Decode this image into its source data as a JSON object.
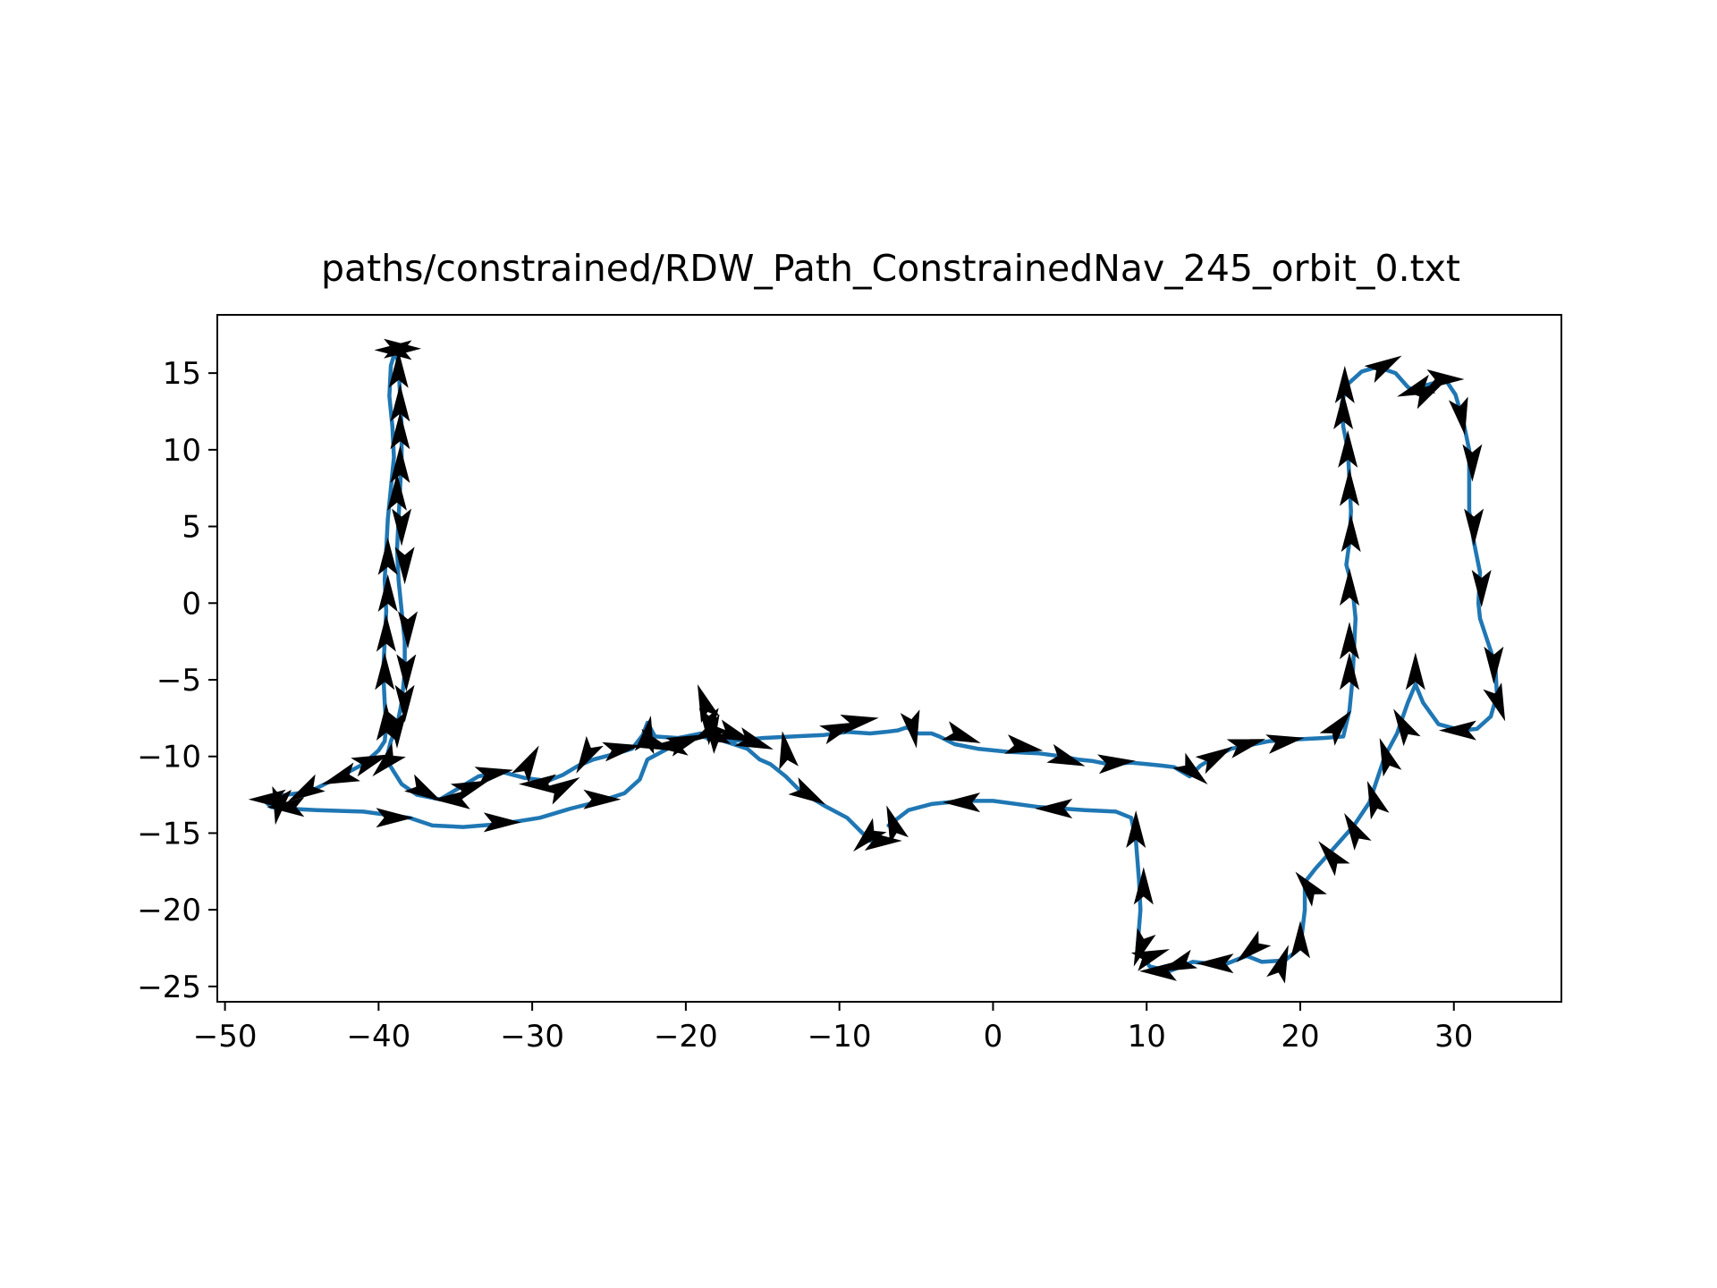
{
  "chart_data": {
    "type": "line",
    "title": "paths/constrained/RDW_Path_ConstrainedNav_245_orbit_0.txt",
    "xlabel": "",
    "ylabel": "",
    "xlim": [
      -50.5,
      37
    ],
    "ylim": [
      -26,
      18.8
    ],
    "x_ticks": [
      -50,
      -40,
      -30,
      -20,
      -10,
      0,
      10,
      20,
      30
    ],
    "x_tick_labels": [
      "−50",
      "−40",
      "−30",
      "−20",
      "−10",
      "0",
      "10",
      "20",
      "30"
    ],
    "y_ticks": [
      15,
      10,
      5,
      0,
      -5,
      -10,
      -15,
      -20,
      -25
    ],
    "y_tick_labels": [
      "15",
      "10",
      "5",
      "0",
      "−5",
      "−10",
      "−15",
      "−20",
      "−25"
    ],
    "grid": false,
    "line_color": "#1f77b4",
    "arrow_color": "#000000",
    "path": [
      [
        -6.8,
        -14.5
      ],
      [
        -5.5,
        -13.5
      ],
      [
        -4,
        -13.1
      ],
      [
        -2,
        -12.9
      ],
      [
        0,
        -12.9
      ],
      [
        3,
        -13.3
      ],
      [
        6,
        -13.5
      ],
      [
        8,
        -13.6
      ],
      [
        9,
        -14.0
      ],
      [
        9.3,
        -15.5
      ],
      [
        9.5,
        -18
      ],
      [
        9.6,
        -20
      ],
      [
        9.4,
        -22.5
      ],
      [
        10.2,
        -23.7
      ],
      [
        11.5,
        -24.0
      ],
      [
        13,
        -23.4
      ],
      [
        15,
        -23.6
      ],
      [
        16.5,
        -23.0
      ],
      [
        17.5,
        -23.4
      ],
      [
        19,
        -23.3
      ],
      [
        20,
        -22.5
      ],
      [
        20.3,
        -20
      ],
      [
        20.3,
        -18.2
      ],
      [
        21,
        -17.3
      ],
      [
        22,
        -16.2
      ],
      [
        23.5,
        -14.5
      ],
      [
        24.5,
        -13
      ],
      [
        25,
        -11.5
      ],
      [
        25.5,
        -10
      ],
      [
        26.3,
        -8.5
      ],
      [
        27,
        -6.5
      ],
      [
        27.5,
        -5.3
      ],
      [
        28,
        -6.5
      ],
      [
        29,
        -7.9
      ],
      [
        30.5,
        -8.3
      ],
      [
        31.5,
        -8.2
      ],
      [
        32.4,
        -7.4
      ],
      [
        32.8,
        -6
      ],
      [
        32.7,
        -4
      ],
      [
        32.2,
        -2.5
      ],
      [
        31.7,
        -1
      ],
      [
        31.6,
        0
      ],
      [
        31.7,
        2
      ],
      [
        31.3,
        4
      ],
      [
        31.0,
        6
      ],
      [
        31.0,
        8
      ],
      [
        31.0,
        10
      ],
      [
        30.6,
        11.9
      ],
      [
        30.1,
        13.6
      ],
      [
        29.5,
        14.5
      ],
      [
        28.5,
        14.3
      ],
      [
        27.8,
        14.1
      ],
      [
        27.3,
        13.9
      ],
      [
        27,
        14.1
      ],
      [
        26.2,
        15.0
      ],
      [
        25,
        15.4
      ],
      [
        24,
        15.1
      ],
      [
        23,
        14.2
      ],
      [
        22.7,
        13
      ],
      [
        22.8,
        11.5
      ],
      [
        23.1,
        10
      ],
      [
        23.2,
        8
      ],
      [
        23.3,
        6
      ],
      [
        23.2,
        4
      ],
      [
        23.0,
        2.5
      ],
      [
        23.4,
        1
      ],
      [
        23.6,
        -1
      ],
      [
        23.5,
        -3
      ],
      [
        23.4,
        -5
      ],
      [
        23.2,
        -7
      ],
      [
        22.8,
        -8.7
      ],
      [
        21.5,
        -8.8
      ],
      [
        19.5,
        -8.9
      ],
      [
        18,
        -9.0
      ],
      [
        17,
        -9.2
      ],
      [
        15.5,
        -9.5
      ],
      [
        14.5,
        -10
      ],
      [
        13.5,
        -10.6
      ],
      [
        12.8,
        -11.3
      ],
      [
        11.8,
        -10.7
      ],
      [
        11,
        -10.6
      ],
      [
        10,
        -10.5
      ],
      [
        9,
        -10.4
      ],
      [
        7.5,
        -10.5
      ],
      [
        6.5,
        -10.3
      ],
      [
        5.5,
        -10.2
      ],
      [
        4.5,
        -10.0
      ],
      [
        3,
        -9.8
      ],
      [
        1,
        -9.7
      ],
      [
        -1,
        -9.5
      ],
      [
        -2.5,
        -9.2
      ],
      [
        -3.5,
        -8.7
      ],
      [
        -4,
        -8.5
      ],
      [
        -5,
        -8.5
      ],
      [
        -5.6,
        -8.1
      ],
      [
        -6.2,
        -8.3
      ],
      [
        -7,
        -8.4
      ],
      [
        -8,
        -8.5
      ],
      [
        -9.5,
        -8.4
      ],
      [
        -11,
        -8.6
      ],
      [
        -13,
        -8.7
      ],
      [
        -15,
        -8.8
      ],
      [
        -17,
        -9.0
      ],
      [
        -18.5,
        -8.9
      ],
      [
        -19,
        -8.5
      ],
      [
        -20.5,
        -8.8
      ],
      [
        -22,
        -8.7
      ],
      [
        -22.5,
        -7.8
      ],
      [
        -22.8,
        -8.6
      ],
      [
        -23.5,
        -9.5
      ],
      [
        -24.5,
        -9.8
      ],
      [
        -26,
        -10.2
      ],
      [
        -27,
        -10.6
      ],
      [
        -28,
        -11.2
      ],
      [
        -29,
        -11.6
      ],
      [
        -30.5,
        -11.4
      ],
      [
        -32,
        -11.0
      ],
      [
        -33.5,
        -11.3
      ],
      [
        -35,
        -12.2
      ],
      [
        -36,
        -12.8
      ],
      [
        -37.5,
        -12.5
      ],
      [
        -38.5,
        -11.8
      ],
      [
        -39,
        -11.0
      ],
      [
        -39.5,
        -10.2
      ],
      [
        -39.2,
        -9
      ],
      [
        -38.8,
        -8
      ],
      [
        -38.5,
        -6.5
      ],
      [
        -38.3,
        -4.5
      ],
      [
        -38.3,
        -2.5
      ],
      [
        -38.5,
        -0.5
      ],
      [
        -38.7,
        1.5
      ],
      [
        -38.8,
        3.5
      ],
      [
        -38.7,
        5.5
      ],
      [
        -38.6,
        7.5
      ],
      [
        -38.5,
        9.5
      ],
      [
        -38.5,
        11.5
      ],
      [
        -38.6,
        13.5
      ],
      [
        -38.7,
        15.5
      ],
      [
        -38.9,
        16.5
      ],
      [
        -39.2,
        15.5
      ],
      [
        -39.3,
        13.5
      ],
      [
        -39.1,
        11.5
      ],
      [
        -39.0,
        9.5
      ],
      [
        -39.2,
        7.5
      ],
      [
        -39.4,
        5.5
      ],
      [
        -39.5,
        3.5
      ],
      [
        -39.6,
        1.5
      ],
      [
        -39.5,
        -0.5
      ],
      [
        -39.6,
        -2.5
      ],
      [
        -39.7,
        -4.5
      ],
      [
        -39.6,
        -6.5
      ],
      [
        -39.5,
        -8.0
      ],
      [
        -39.6,
        -9.0
      ],
      [
        -40,
        -9.6
      ],
      [
        -41,
        -10.5
      ],
      [
        -42.5,
        -11.3
      ],
      [
        -43.5,
        -11.8
      ],
      [
        -44.5,
        -12.3
      ],
      [
        -46,
        -12.5
      ],
      [
        -47.5,
        -12.8
      ],
      [
        -47.0,
        -13.3
      ],
      [
        -46,
        -13.4
      ],
      [
        -44,
        -13.5
      ],
      [
        -41,
        -13.6
      ],
      [
        -38,
        -14.0
      ],
      [
        -36.5,
        -14.5
      ],
      [
        -34.5,
        -14.6
      ],
      [
        -32,
        -14.4
      ],
      [
        -29.5,
        -14.0
      ],
      [
        -27.5,
        -13.4
      ],
      [
        -25.5,
        -12.9
      ],
      [
        -24,
        -12.4
      ],
      [
        -23,
        -11.5
      ],
      [
        -22.5,
        -10.2
      ],
      [
        -21,
        -9.4
      ],
      [
        -19,
        -8.7
      ],
      [
        -17.5,
        -9.0
      ],
      [
        -16,
        -9.5
      ],
      [
        -15.2,
        -10.2
      ],
      [
        -14.5,
        -10.5
      ],
      [
        -13.5,
        -11.3
      ],
      [
        -12.5,
        -12.3
      ],
      [
        -11,
        -13.2
      ],
      [
        -9.5,
        -14.0
      ],
      [
        -8.5,
        -15.0
      ],
      [
        -8,
        -15.5
      ],
      [
        -7.5,
        -15.5
      ]
    ],
    "arrows": [
      [
        -39,
        16.5,
        180
      ],
      [
        -38.5,
        16.6,
        0
      ],
      [
        -38.7,
        15.2,
        90
      ],
      [
        -38.6,
        13,
        90
      ],
      [
        -38.6,
        11.2,
        90
      ],
      [
        -38.6,
        9,
        90
      ],
      [
        -38.8,
        7.2,
        90
      ],
      [
        -38.5,
        5,
        270
      ],
      [
        -38.3,
        2.5,
        270
      ],
      [
        -39.4,
        3,
        90
      ],
      [
        -39.4,
        0.6,
        90
      ],
      [
        -39.5,
        -2,
        90
      ],
      [
        -38.1,
        -1.7,
        270
      ],
      [
        -38.2,
        -4.5,
        270
      ],
      [
        -39.6,
        -4.5,
        90
      ],
      [
        -38.3,
        -6.5,
        270
      ],
      [
        -39.5,
        -7.8,
        90
      ],
      [
        -38.8,
        -8.2,
        270
      ],
      [
        -39.5,
        -10.4,
        225
      ],
      [
        -37,
        -12.3,
        330
      ],
      [
        -35.2,
        -12.8,
        180
      ],
      [
        -34,
        -12.0,
        20
      ],
      [
        -32.5,
        -11.1,
        10
      ],
      [
        -30.2,
        -10.4,
        60
      ],
      [
        -29.6,
        -11.8,
        180
      ],
      [
        -28,
        -12.0,
        30
      ],
      [
        -26.5,
        -10.0,
        240
      ],
      [
        -24.2,
        -9.5,
        10
      ],
      [
        -22.5,
        -8.6,
        80
      ],
      [
        -21,
        -9.3,
        180
      ],
      [
        -20,
        -9.0,
        20
      ],
      [
        -18.8,
        -6.5,
        110
      ],
      [
        -18.5,
        -8,
        270
      ],
      [
        -18.2,
        -8.5,
        120
      ],
      [
        -16.8,
        -8.6,
        340
      ],
      [
        -15.5,
        -9.1,
        340
      ],
      [
        -13.5,
        -9.6,
        100
      ],
      [
        -10,
        -8.2,
        20
      ],
      [
        -8.7,
        -7.7,
        10
      ],
      [
        -5.2,
        -8.2,
        280
      ],
      [
        -2,
        -8.7,
        340
      ],
      [
        2,
        -9.4,
        350
      ],
      [
        4.8,
        -10.2,
        340
      ],
      [
        8,
        -10.4,
        5
      ],
      [
        13,
        -11.0,
        320
      ],
      [
        14.5,
        -10.0,
        30
      ],
      [
        16.5,
        -9.2,
        15
      ],
      [
        19,
        -9.0,
        10
      ],
      [
        22.5,
        -8.0,
        50
      ],
      [
        23.2,
        -4.5,
        90
      ],
      [
        23.2,
        -2.5,
        90
      ],
      [
        23.2,
        1,
        90
      ],
      [
        23.3,
        4.5,
        90
      ],
      [
        23.2,
        7.5,
        90
      ],
      [
        23.1,
        10,
        90
      ],
      [
        22.8,
        12.5,
        90
      ],
      [
        22.9,
        14.2,
        90
      ],
      [
        25.5,
        15.5,
        30
      ],
      [
        27.5,
        13.9,
        200
      ],
      [
        28.3,
        13.8,
        30
      ],
      [
        29.4,
        14.6,
        0
      ],
      [
        30.5,
        12.2,
        280
      ],
      [
        31.2,
        9.2,
        270
      ],
      [
        31.3,
        5.0,
        270
      ],
      [
        31.8,
        1,
        270
      ],
      [
        32.6,
        -4,
        270
      ],
      [
        32.9,
        -6.5,
        290
      ],
      [
        30.3,
        -8.3,
        180
      ],
      [
        27.5,
        -4.5,
        90
      ],
      [
        26.7,
        -8.0,
        120
      ],
      [
        25.6,
        -10.0,
        110
      ],
      [
        24.8,
        -12.8,
        110
      ],
      [
        23.5,
        -14.8,
        120
      ],
      [
        22.0,
        -16.5,
        130
      ],
      [
        20.5,
        -18.5,
        130
      ],
      [
        20.0,
        -22.0,
        90
      ],
      [
        18.8,
        -23.5,
        70
      ],
      [
        16.8,
        -22.6,
        220
      ],
      [
        14.5,
        -23.5,
        180
      ],
      [
        12,
        -23.6,
        200
      ],
      [
        10.8,
        -24.0,
        180
      ],
      [
        10.3,
        -23.0,
        20
      ],
      [
        9.6,
        -22.5,
        250
      ],
      [
        9.8,
        -18.5,
        90
      ],
      [
        9.3,
        -14.8,
        90
      ],
      [
        4,
        -13.4,
        180
      ],
      [
        -2,
        -13.0,
        180
      ],
      [
        -6.5,
        -14.4,
        110
      ],
      [
        -7.2,
        -15.5,
        0
      ],
      [
        -8.2,
        -15.3,
        225
      ],
      [
        -12,
        -12.5,
        330
      ],
      [
        -18.5,
        -8.4,
        210
      ],
      [
        -22.0,
        -9.2,
        340
      ],
      [
        -25.5,
        -12.8,
        0
      ],
      [
        -32,
        -14.3,
        0
      ],
      [
        -39,
        -14.0,
        0
      ],
      [
        -46,
        -13.3,
        180
      ],
      [
        -46.5,
        -13.2,
        260
      ],
      [
        -47.2,
        -12.8,
        180
      ],
      [
        -44.8,
        -12.3,
        210
      ],
      [
        -42.5,
        -11.4,
        200
      ],
      [
        -40.5,
        -10.3,
        20
      ]
    ]
  }
}
